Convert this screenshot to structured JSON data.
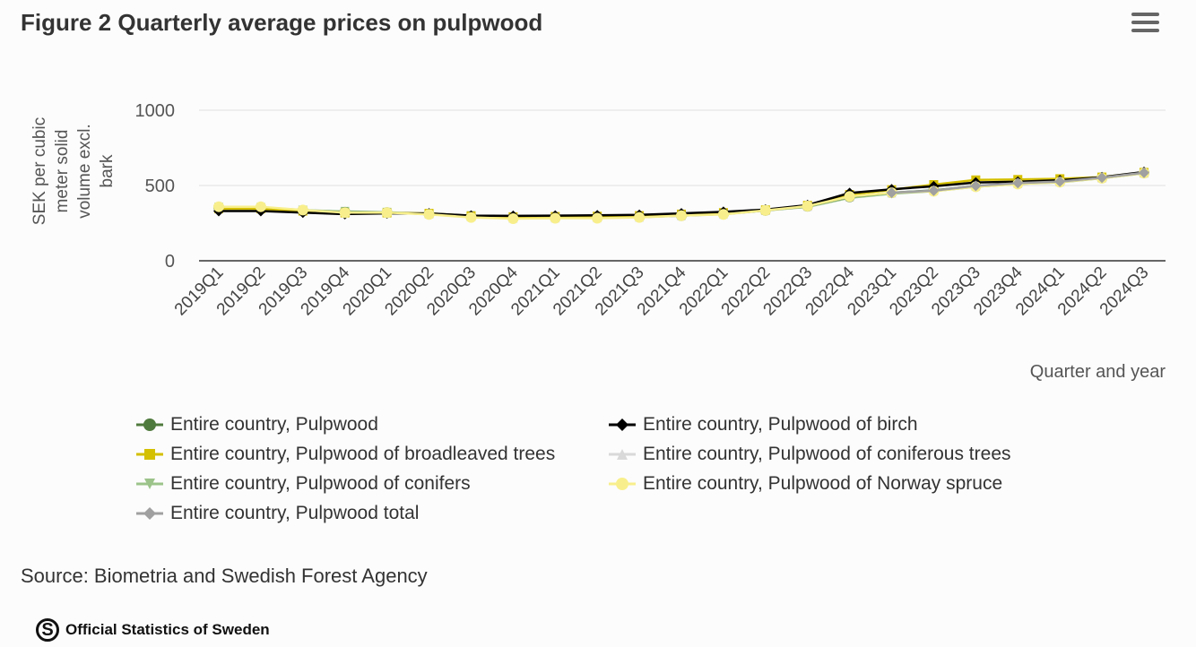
{
  "title": "Figure 2 Quarterly average prices on pulpwood",
  "menu_icon": "hamburger-menu-icon",
  "source": "Source: Biometria and Swedish Forest Agency",
  "logo_text": "Official Statistics of Sweden",
  "chart_data": {
    "type": "line",
    "title": "Figure 2 Quarterly average prices on pulpwood",
    "xlabel": "Quarter and year",
    "ylabel": "SEK per cubic meter solid volume excl. bark",
    "ylim": [
      0,
      1000
    ],
    "yticks": [
      0,
      500,
      1000
    ],
    "grid": true,
    "legend": "bottom",
    "categories": [
      "2019Q1",
      "2019Q2",
      "2019Q3",
      "2019Q4",
      "2020Q1",
      "2020Q2",
      "2020Q3",
      "2020Q4",
      "2021Q1",
      "2021Q2",
      "2021Q3",
      "2021Q4",
      "2022Q1",
      "2022Q2",
      "2022Q3",
      "2022Q4",
      "2023Q1",
      "2023Q2",
      "2023Q3",
      "2023Q4",
      "2024Q1",
      "2024Q2",
      "2024Q3"
    ],
    "series": [
      {
        "name": "Entire country, Pulpwood",
        "color": "#4f7a3d",
        "marker": "circle",
        "values": [
          355,
          352,
          335,
          322,
          320,
          310,
          292,
          283,
          285,
          286,
          290,
          300,
          310,
          335,
          362,
          425,
          452,
          468,
          496,
          514,
          525,
          550,
          583
        ]
      },
      {
        "name": "Entire country, Pulpwood of birch",
        "color": "#000000",
        "marker": "diamond",
        "values": [
          330,
          330,
          320,
          310,
          315,
          315,
          300,
          298,
          300,
          302,
          305,
          315,
          325,
          340,
          370,
          450,
          475,
          495,
          520,
          525,
          535,
          555,
          590
        ]
      },
      {
        "name": "Entire country, Pulpwood of broadleaved trees",
        "color": "#d4bf00",
        "marker": "square",
        "values": [
          345,
          345,
          330,
          318,
          318,
          315,
          298,
          292,
          294,
          296,
          300,
          310,
          320,
          338,
          368,
          440,
          472,
          506,
          537,
          540,
          545,
          556,
          587
        ]
      },
      {
        "name": "Entire country, Pulpwood of coniferous trees",
        "color": "#d9d9d9",
        "marker": "triangle",
        "values": [
          358,
          356,
          338,
          323,
          321,
          310,
          292,
          282,
          284,
          285,
          289,
          300,
          309,
          334,
          361,
          423,
          450,
          465,
          494,
          512,
          523,
          549,
          582
        ]
      },
      {
        "name": "Entire country, Pulpwood of conifers",
        "color": "#9cc48a",
        "marker": "triangle-down",
        "values": [
          356,
          354,
          336,
          328,
          322,
          312,
          300,
          290,
          288,
          288,
          292,
          303,
          310,
          334,
          358,
          418,
          446,
          462,
          492,
          510,
          521,
          548,
          581
        ]
      },
      {
        "name": "Entire country, Pulpwood of Norway spruce",
        "color": "#f8ef8c",
        "marker": "circle",
        "values": [
          359,
          359,
          337,
          320,
          320,
          308,
          288,
          280,
          283,
          283,
          288,
          300,
          308,
          335,
          363,
          427,
          452,
          462,
          492,
          510,
          522,
          548,
          582
        ]
      },
      {
        "name": "Entire country, Pulpwood total",
        "color": "#a0a0a0",
        "marker": "diamond",
        "values": [
          null,
          null,
          null,
          null,
          null,
          null,
          null,
          null,
          null,
          null,
          null,
          null,
          null,
          null,
          null,
          null,
          452,
          466,
          498,
          516,
          526,
          552,
          585
        ]
      }
    ]
  }
}
